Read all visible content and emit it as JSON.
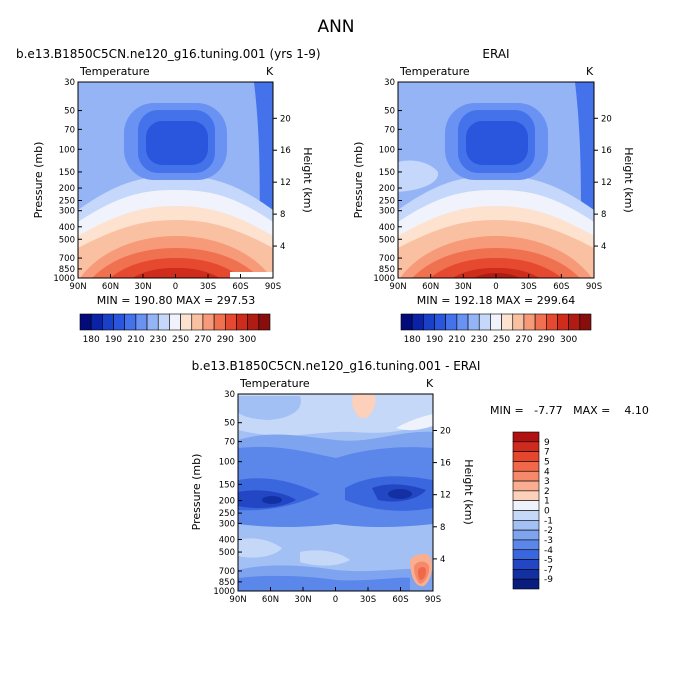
{
  "figure_title": "ANN",
  "panels": [
    {
      "title": "b.e13.B1850C5CN.ne120_g16.tuning.001 (yrs 1-9)",
      "field_label": "Temperature",
      "units": "K",
      "min_max_text": "MIN = 190.80   MAX = 297.53"
    },
    {
      "title": "ERAI",
      "field_label": "Temperature",
      "units": "K",
      "min_max_text": "MIN = 192.18   MAX = 299.64"
    },
    {
      "title": "b.e13.B1850C5CN.ne120_g16.tuning.001 - ERAI",
      "field_label": "Temperature",
      "units": "K",
      "min_max_text": "MIN =   -7.77   MAX =    4.10"
    }
  ],
  "axes": {
    "ylabel_left": "Pressure (mb)",
    "ylabel_right": "Height (km)",
    "pressure_ticks": [
      "30",
      "50",
      "70",
      "100",
      "150",
      "200",
      "250",
      "300",
      "400",
      "500",
      "700",
      "850",
      "1000"
    ],
    "height_ticks": [
      "20",
      "16",
      "12",
      "8",
      "4"
    ],
    "lat_ticks": [
      "90N",
      "60N",
      "30N",
      "0",
      "30S",
      "60S",
      "90S"
    ]
  },
  "temperature_colorbar": {
    "labels": [
      "180",
      "190",
      "210",
      "230",
      "250",
      "270",
      "290",
      "300"
    ],
    "colors": [
      "#030a7a",
      "#0a22a5",
      "#1a3fc8",
      "#2a56de",
      "#4472ea",
      "#6a92f2",
      "#95b4f6",
      "#c5d7fa",
      "#f0f3fb",
      "#fde2d0",
      "#f9c0a2",
      "#f69a79",
      "#ef714f",
      "#e5492f",
      "#cf2c1c",
      "#ae1c14",
      "#860e0c"
    ]
  },
  "difference_colorbar": {
    "labels": [
      "9",
      "7",
      "5",
      "4",
      "3",
      "2",
      "1",
      "0",
      "-1",
      "-2",
      "-3",
      "-4",
      "-5",
      "-7",
      "-9"
    ],
    "colors": [
      "#b01212",
      "#cf2a1e",
      "#e5472c",
      "#f0674a",
      "#f58a6b",
      "#f9ad91",
      "#fcd0ba",
      "#eef2fa",
      "#c6d8f8",
      "#a3c0f5",
      "#7ea4f0",
      "#5b87ea",
      "#3b67de",
      "#2246c4",
      "#1330a3",
      "#081d7e"
    ]
  },
  "chart_data": [
    {
      "type": "heatmap",
      "title": "b.e13.B1850C5CN.ne120_g16.tuning.001 (yrs 1-9)",
      "variable": "Temperature",
      "units": "K",
      "x": "latitude 90N to 90S",
      "y": "pressure (mb) 30 to 1000",
      "min": 190.8,
      "max": 297.53,
      "contour_levels": [
        180,
        185,
        190,
        195,
        200,
        205,
        210,
        220,
        230,
        240,
        250,
        260,
        270,
        280,
        290,
        295,
        300
      ]
    },
    {
      "type": "heatmap",
      "title": "ERAI",
      "variable": "Temperature",
      "units": "K",
      "min": 192.18,
      "max": 299.64,
      "contour_levels": [
        180,
        185,
        190,
        195,
        200,
        205,
        210,
        220,
        230,
        240,
        250,
        260,
        270,
        280,
        290,
        295,
        300
      ]
    },
    {
      "type": "heatmap",
      "title": "b.e13.B1850C5CN.ne120_g16.tuning.001 - ERAI",
      "variable": "Temperature difference",
      "units": "K",
      "min": -7.77,
      "max": 4.1,
      "contour_levels": [
        -9,
        -7,
        -5,
        -4,
        -3,
        -2,
        -1,
        0,
        1,
        2,
        3,
        4,
        5,
        7,
        9
      ]
    }
  ]
}
